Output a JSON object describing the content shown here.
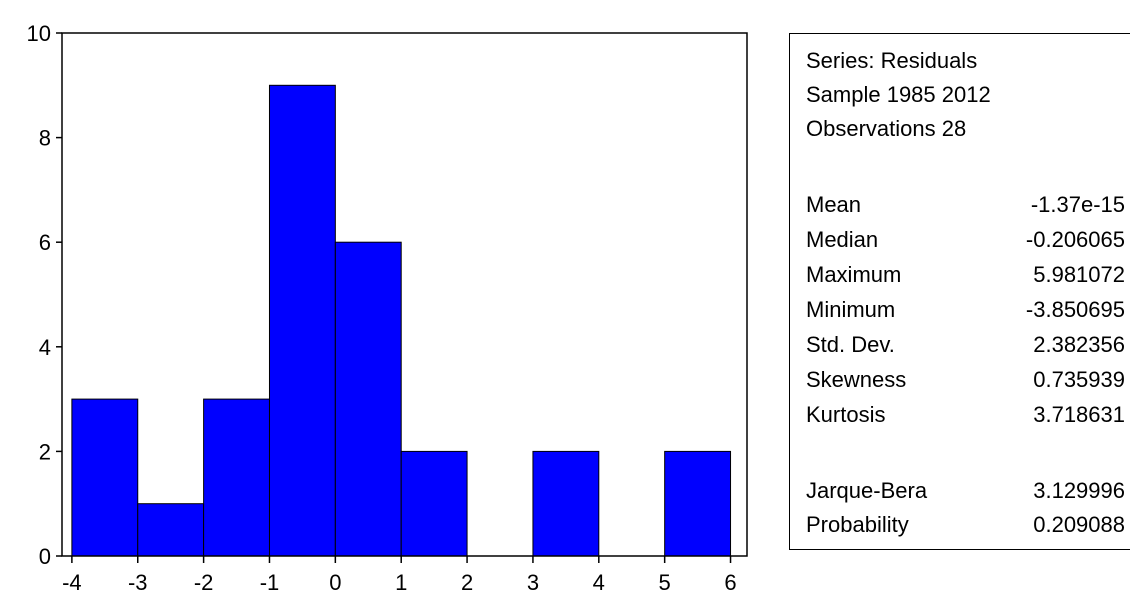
{
  "chart_data": {
    "type": "bar",
    "subtype": "histogram",
    "bins": [
      {
        "from": -4,
        "to": -3,
        "count": 3
      },
      {
        "from": -3,
        "to": -2,
        "count": 1
      },
      {
        "from": -2,
        "to": -1,
        "count": 3
      },
      {
        "from": -1,
        "to": 0,
        "count": 9
      },
      {
        "from": 0,
        "to": 1,
        "count": 6
      },
      {
        "from": 1,
        "to": 2,
        "count": 2
      },
      {
        "from": 2,
        "to": 3,
        "count": 0
      },
      {
        "from": 3,
        "to": 4,
        "count": 2
      },
      {
        "from": 4,
        "to": 5,
        "count": 0
      },
      {
        "from": 5,
        "to": 6,
        "count": 2
      }
    ],
    "xticks": [
      "-4",
      "-3",
      "-2",
      "-1",
      "0",
      "1",
      "2",
      "3",
      "4",
      "5",
      "6"
    ],
    "yticks": [
      "0",
      "2",
      "4",
      "6",
      "8",
      "10"
    ],
    "xlim": [
      -4.15,
      6.25
    ],
    "ylim": [
      0,
      10
    ],
    "bar_color": "#0000ff",
    "grid": false,
    "title": "",
    "xlabel": "",
    "ylabel": ""
  },
  "stats": {
    "header": [
      "Series: Residuals",
      "Sample 1985 2012",
      "Observations 28"
    ],
    "rows": [
      {
        "label": "Mean",
        "value": "-1.37e-15"
      },
      {
        "label": "Median",
        "value": "-0.206065"
      },
      {
        "label": "Maximum",
        "value": "5.981072"
      },
      {
        "label": "Minimum",
        "value": "-3.850695"
      },
      {
        "label": "Std. Dev.",
        "value": "2.382356"
      },
      {
        "label": "Skewness",
        "value": "0.735939"
      },
      {
        "label": "Kurtosis",
        "value": "3.718631"
      }
    ],
    "tests": [
      {
        "label": "Jarque-Bera",
        "value": "3.129996"
      },
      {
        "label": "Probability",
        "value": "0.209088"
      }
    ]
  }
}
